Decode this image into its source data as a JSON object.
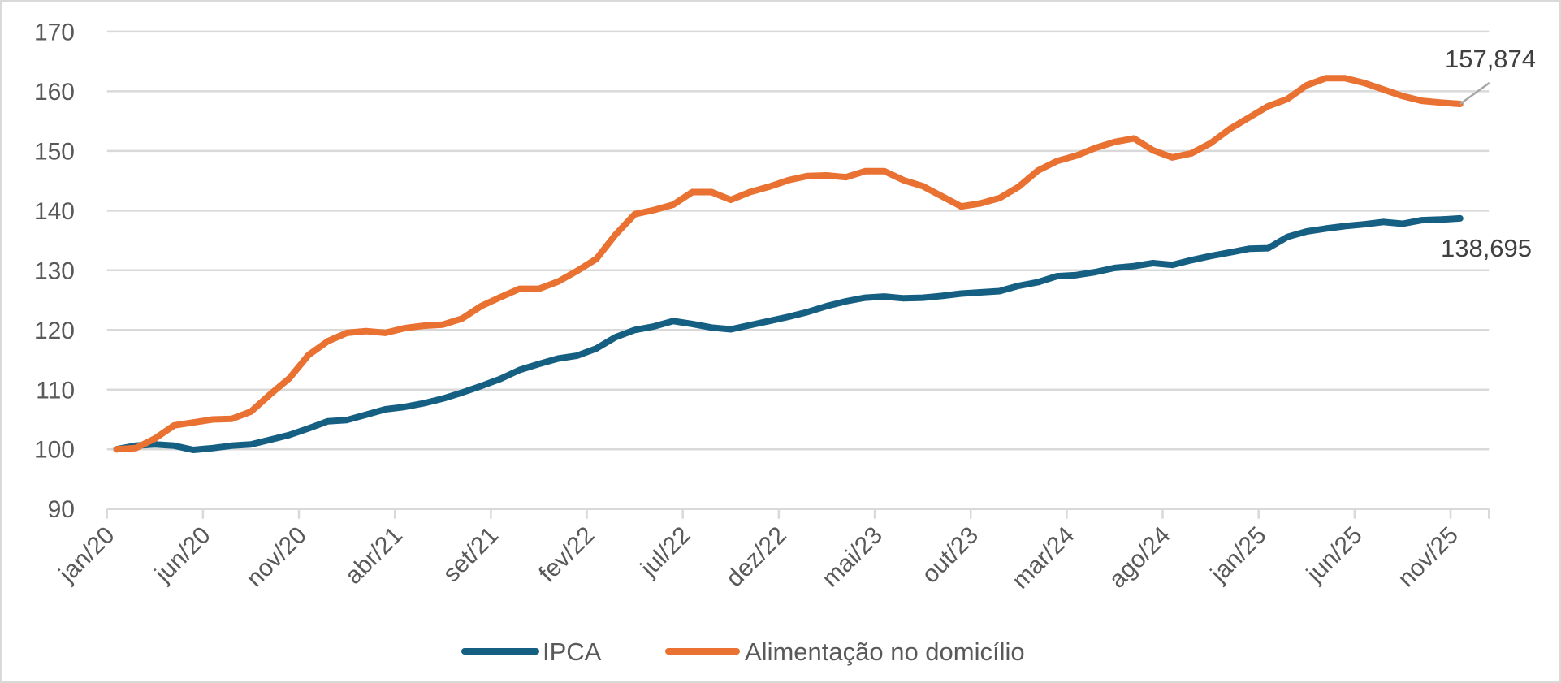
{
  "chart_data": {
    "type": "line",
    "title": "",
    "xlabel": "",
    "ylabel": "",
    "ylim": [
      90,
      170
    ],
    "y_ticks": [
      90,
      100,
      110,
      120,
      130,
      140,
      150,
      160,
      170
    ],
    "y_tick_labels": [
      "90",
      "100",
      "110",
      "120",
      "130",
      "140",
      "150",
      "160",
      "170"
    ],
    "x_frequency": "monthly",
    "x_count": 71,
    "x_tick_interval": 5,
    "x_tick_labels": [
      "jan/20",
      "jun/20",
      "nov/20",
      "abr/21",
      "set/21",
      "fev/22",
      "jul/22",
      "dez/22",
      "mai/23",
      "out/23",
      "mar/24",
      "ago/24",
      "jan/25",
      "jun/25",
      "nov/25"
    ],
    "grid": true,
    "legend_position": "bottom",
    "series": [
      {
        "name": "IPCA",
        "color": "#156082",
        "values": [
          100.0,
          100.6,
          100.8,
          100.6,
          99.9,
          100.2,
          100.6,
          100.8,
          101.6,
          102.4,
          103.5,
          104.7,
          104.9,
          105.8,
          106.7,
          107.1,
          107.7,
          108.5,
          109.5,
          110.6,
          111.8,
          113.3,
          114.3,
          115.2,
          115.7,
          116.9,
          118.8,
          120.0,
          120.6,
          121.5,
          121.0,
          120.4,
          120.1,
          120.8,
          121.5,
          122.2,
          123.0,
          124.0,
          124.8,
          125.4,
          125.6,
          125.3,
          125.4,
          125.7,
          126.1,
          126.3,
          126.5,
          127.4,
          128.0,
          129.0,
          129.2,
          129.7,
          130.4,
          130.7,
          131.2,
          130.9,
          131.7,
          132.4,
          133.0,
          133.6,
          133.7,
          135.6,
          136.5,
          137.0,
          137.4,
          137.7,
          138.1,
          137.8,
          138.4,
          138.5,
          138.695
        ],
        "end_label": "138,695"
      },
      {
        "name": "Alimentação no domicílio",
        "color": "#E97132",
        "values": [
          100.0,
          100.2,
          101.8,
          104.0,
          104.5,
          105.0,
          105.1,
          106.3,
          109.2,
          111.9,
          115.8,
          118.1,
          119.5,
          119.8,
          119.5,
          120.3,
          120.7,
          120.9,
          121.9,
          124.0,
          125.5,
          126.9,
          126.9,
          128.1,
          129.9,
          131.9,
          136.0,
          139.4,
          140.1,
          141.0,
          143.1,
          143.1,
          141.8,
          143.1,
          144.0,
          145.1,
          145.8,
          145.9,
          145.6,
          146.6,
          146.6,
          145.1,
          144.1,
          142.4,
          140.7,
          141.2,
          142.1,
          144.0,
          146.7,
          148.3,
          149.2,
          150.5,
          151.5,
          152.1,
          150.1,
          148.9,
          149.6,
          151.3,
          153.7,
          155.6,
          157.5,
          158.7,
          161.0,
          162.2,
          162.2,
          161.4,
          160.3,
          159.2,
          158.4,
          158.1,
          157.874
        ],
        "end_label": "157,874"
      }
    ]
  },
  "colors": {
    "grid": "#d9d9d9",
    "axis_text": "#595959",
    "leader_line": "#a6a6a6"
  }
}
